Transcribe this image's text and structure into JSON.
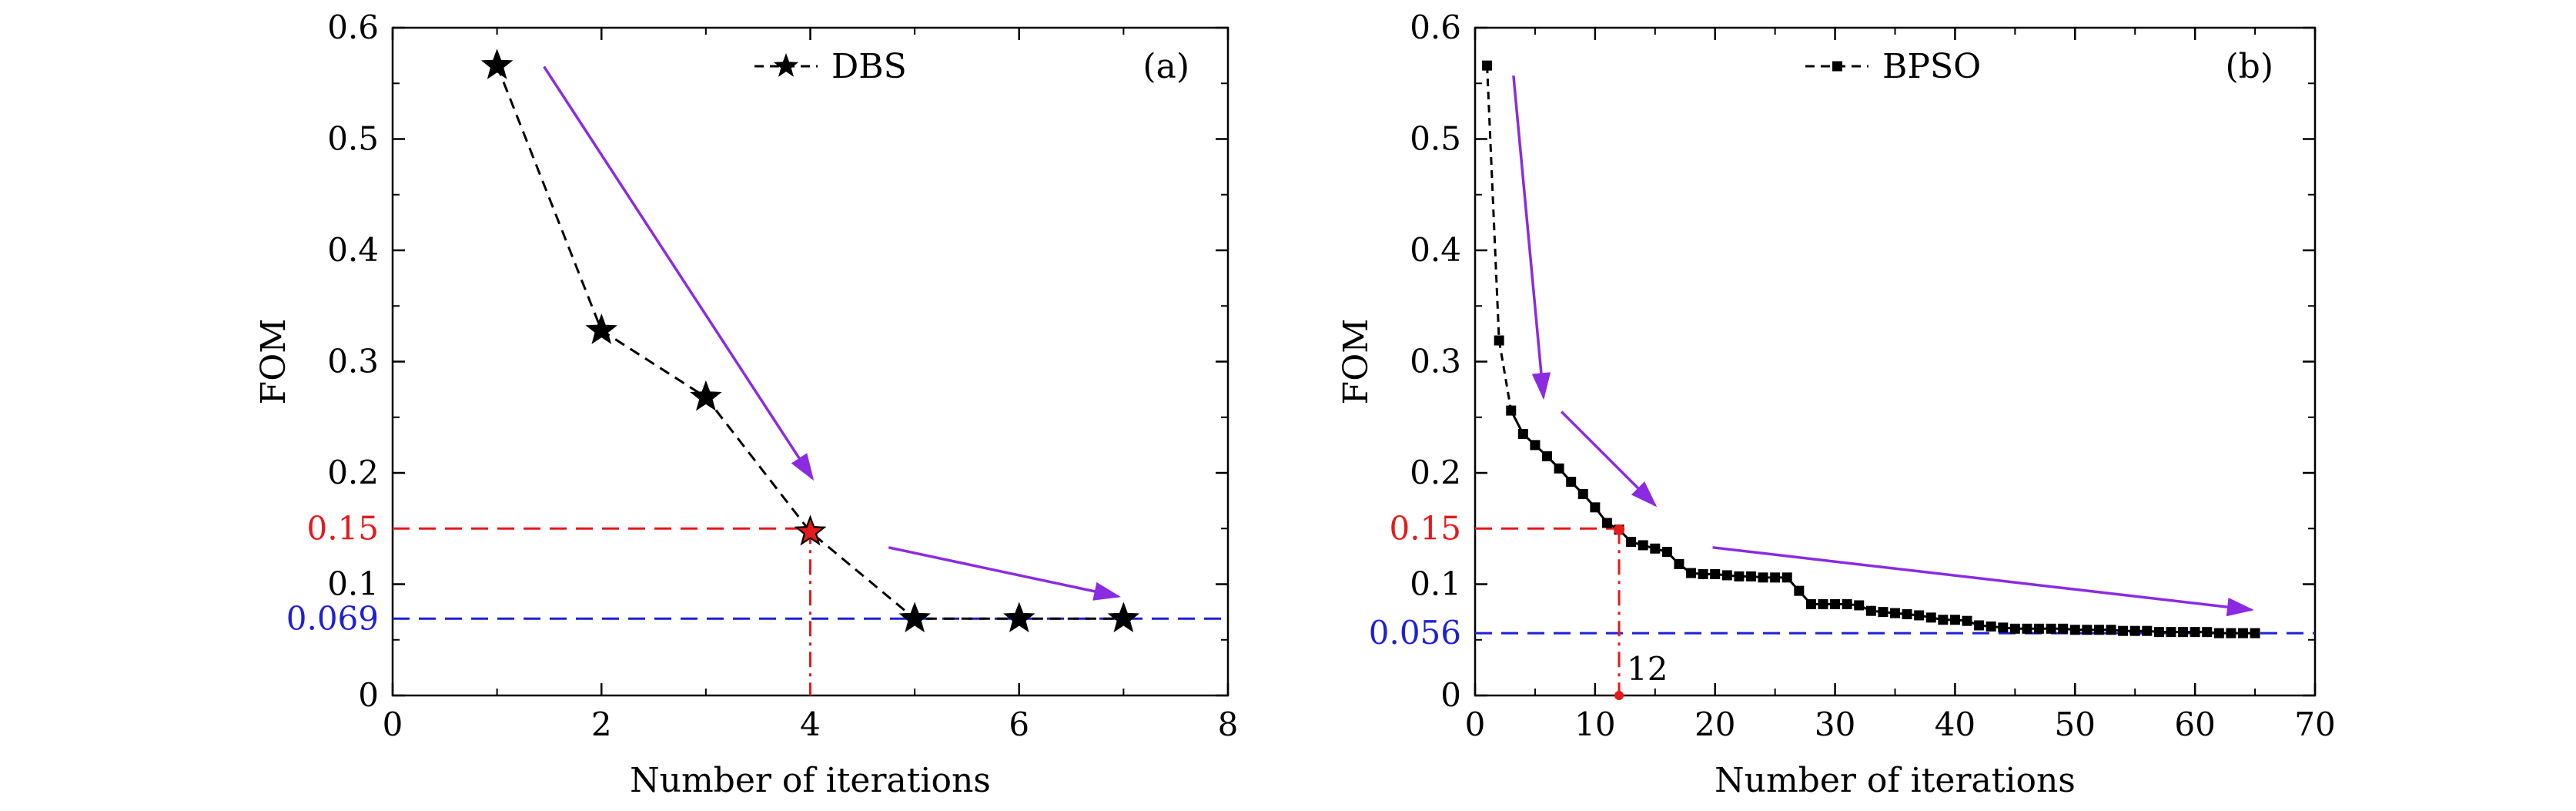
{
  "chart_data": [
    {
      "type": "line",
      "panel_label": "(a)",
      "xlabel": "Number of iterations",
      "ylabel": "FOM",
      "xlim": [
        0,
        8
      ],
      "ylim": [
        0,
        0.6
      ],
      "xticks": [
        0,
        2,
        4,
        6,
        8
      ],
      "xtick_labels": [
        "0",
        "2",
        "4",
        "6",
        "8"
      ],
      "yticks": [
        0,
        0.1,
        0.2,
        0.3,
        0.4,
        0.5,
        0.6
      ],
      "ytick_labels": [
        "0",
        "0.1",
        "0.2",
        "0.3",
        "0.4",
        "0.5",
        "0.6"
      ],
      "legend_position": "top-center",
      "series": [
        {
          "name": "DBS",
          "marker": "star",
          "line_style": "dashed",
          "x": [
            1,
            2,
            3,
            4,
            5,
            6,
            7
          ],
          "y": [
            0.566,
            0.328,
            0.268,
            0.147,
            0.069,
            0.069,
            0.069
          ],
          "highlight_index": 3
        }
      ],
      "reference_lines": [
        {
          "axis": "y",
          "value": 0.15,
          "label": "0.15",
          "color": "#e41a1c",
          "x_extent": 4
        },
        {
          "axis": "y",
          "value": 0.069,
          "label": "0.069",
          "color": "#1f1fd6",
          "x_extent": "full"
        },
        {
          "axis": "x",
          "value": 4,
          "label": "",
          "color": "#e41a1c",
          "y_extent": 0.15
        }
      ],
      "arrows": [
        {
          "from": [
            1.45,
            0.565
          ],
          "to": [
            4.02,
            0.195
          ]
        },
        {
          "from": [
            4.75,
            0.133
          ],
          "to": [
            6.95,
            0.089
          ]
        }
      ]
    },
    {
      "type": "line",
      "panel_label": "(b)",
      "xlabel": "Number of iterations",
      "ylabel": "FOM",
      "xlim": [
        0,
        70
      ],
      "ylim": [
        0,
        0.6
      ],
      "xticks": [
        0,
        10,
        20,
        30,
        40,
        50,
        60,
        70
      ],
      "xtick_labels": [
        "0",
        "10",
        "20",
        "30",
        "40",
        "50",
        "60",
        "70"
      ],
      "yticks": [
        0,
        0.1,
        0.2,
        0.3,
        0.4,
        0.5,
        0.6
      ],
      "ytick_labels": [
        "0",
        "0.1",
        "0.2",
        "0.3",
        "0.4",
        "0.5",
        "0.6"
      ],
      "legend_position": "top-center",
      "series": [
        {
          "name": "BPSO",
          "marker": "square",
          "line_style": "dashed-solid",
          "x": [
            1,
            2,
            3,
            4,
            5,
            6,
            7,
            8,
            9,
            10,
            11,
            12,
            13,
            14,
            15,
            16,
            17,
            18,
            19,
            20,
            21,
            22,
            23,
            24,
            25,
            26,
            27,
            28,
            29,
            30,
            31,
            32,
            33,
            34,
            35,
            36,
            37,
            38,
            39,
            40,
            41,
            42,
            43,
            44,
            45,
            46,
            47,
            48,
            49,
            50,
            51,
            52,
            53,
            54,
            55,
            56,
            57,
            58,
            59,
            60,
            61,
            62,
            63,
            64,
            65
          ],
          "y": [
            0.566,
            0.319,
            0.256,
            0.235,
            0.225,
            0.215,
            0.204,
            0.192,
            0.181,
            0.169,
            0.155,
            0.149,
            0.138,
            0.135,
            0.132,
            0.129,
            0.118,
            0.11,
            0.109,
            0.109,
            0.108,
            0.107,
            0.107,
            0.106,
            0.106,
            0.106,
            0.094,
            0.082,
            0.082,
            0.082,
            0.082,
            0.081,
            0.076,
            0.075,
            0.074,
            0.073,
            0.072,
            0.07,
            0.068,
            0.068,
            0.067,
            0.063,
            0.062,
            0.061,
            0.06,
            0.06,
            0.06,
            0.06,
            0.06,
            0.059,
            0.059,
            0.059,
            0.059,
            0.058,
            0.058,
            0.058,
            0.057,
            0.057,
            0.057,
            0.057,
            0.057,
            0.056,
            0.056,
            0.056,
            0.056
          ],
          "highlight_index": 11
        }
      ],
      "reference_lines": [
        {
          "axis": "y",
          "value": 0.15,
          "label": "0.15",
          "color": "#e41a1c",
          "x_extent": 12
        },
        {
          "axis": "y",
          "value": 0.056,
          "label": "0.056",
          "color": "#1f1fd6",
          "x_extent": "full"
        },
        {
          "axis": "x",
          "value": 12,
          "label": "12",
          "color": "#e41a1c",
          "y_extent": 0.15
        }
      ],
      "arrows": [
        {
          "from": [
            3.2,
            0.557
          ],
          "to": [
            5.7,
            0.268
          ]
        },
        {
          "from": [
            7.2,
            0.255
          ],
          "to": [
            15.0,
            0.171
          ]
        },
        {
          "from": [
            19.8,
            0.133
          ],
          "to": [
            64.7,
            0.077
          ]
        }
      ]
    }
  ],
  "colors": {
    "arrow": "#8a2be2",
    "red_reference": "#e41a1c",
    "blue_reference": "#1f1fd6",
    "series": "#000000"
  }
}
